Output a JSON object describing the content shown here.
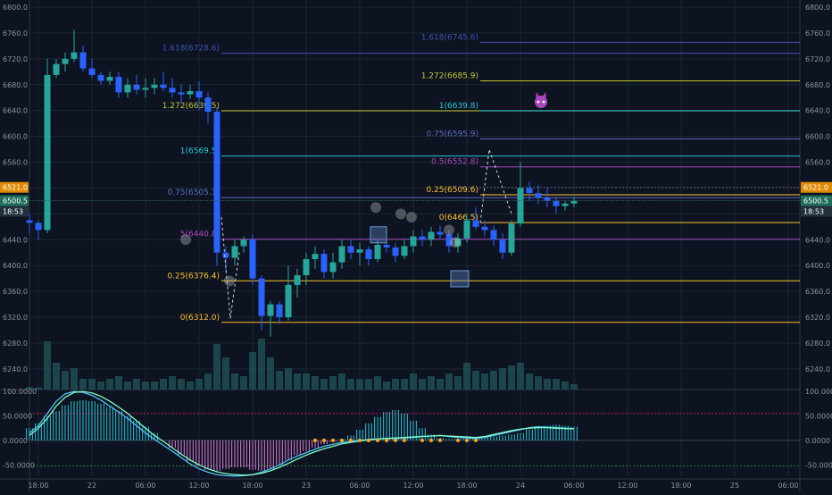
{
  "colors": {
    "background": "#0d1320",
    "grid": "#1b2433",
    "axis_text": "#8a93a3",
    "up": "#26a69a",
    "down": "#2962ff",
    "volume": "#1f4f52",
    "macd_line": "#4fc3f7",
    "signal_line": "#80ffc8",
    "hist_pos": "#26c6da",
    "hist_neg": "#e07bdc",
    "fib_1618": "#3f51b5",
    "fib_1272": "#c0ca33",
    "fib_1": "#26c6da",
    "fib_075": "#5c6bc0",
    "fib_05": "#ab47bc",
    "fib_025": "#fbc02d",
    "fib_0": "#fbc02d",
    "marker_orange": "#ffa726",
    "price_tag_orange": "#e08a00",
    "price_tag_green": "#1f6f5c",
    "price_tag_dark": "#23303d"
  },
  "chart_data": {
    "type": "candlestick",
    "price_axis": {
      "ylim": [
        6208,
        6800
      ],
      "ticks": [
        "6800.0",
        "6760.0",
        "6720.0",
        "6680.0",
        "6640.0",
        "6600.0",
        "6560.0",
        "6520.0",
        "6480.0",
        "6440.0",
        "6400.0",
        "6360.0",
        "6320.0",
        "6280.0",
        "6240.0"
      ],
      "tick_values": [
        6800,
        6760,
        6720,
        6680,
        6640,
        6600,
        6560,
        6520,
        6480,
        6440,
        6400,
        6360,
        6320,
        6280,
        6240
      ]
    },
    "price_tags": [
      {
        "label": "6521.0",
        "value": 6521,
        "style": "orange"
      },
      {
        "label": "6500.5",
        "value": 6500.5,
        "style": "green"
      },
      {
        "label": "18:53",
        "value": 6484,
        "style": "dark"
      }
    ],
    "macd_axis": {
      "ylim": [
        -75,
        102
      ],
      "ticks": [
        "100.0000",
        "50.0000",
        "0.0000",
        "-50.0000"
      ],
      "tick_values": [
        100,
        50,
        0,
        -50
      ],
      "levels": [
        {
          "value": 55,
          "color": "#c2185b"
        },
        {
          "value": -52,
          "color": "#2e7d32"
        }
      ]
    },
    "time_axis": {
      "labels": [
        "18:00",
        "22",
        "06:00",
        "12:00",
        "18:00",
        "23",
        "06:00",
        "12:00",
        "18:00",
        "24",
        "06:00",
        "12:00",
        "18:00",
        "25",
        "06:00"
      ],
      "hours": [
        -6,
        0,
        6,
        12,
        18,
        24,
        30,
        36,
        42,
        48,
        54,
        60,
        66,
        72,
        78
      ]
    },
    "candles_hourly": [
      [
        6470,
        6480,
        6450,
        6466
      ],
      [
        6466,
        6470,
        6440,
        6455
      ],
      [
        6455,
        6720,
        6450,
        6695
      ],
      [
        6695,
        6720,
        6690,
        6712
      ],
      [
        6712,
        6730,
        6700,
        6720
      ],
      [
        6720,
        6765,
        6715,
        6730
      ],
      [
        6730,
        6740,
        6700,
        6705
      ],
      [
        6705,
        6720,
        6690,
        6695
      ],
      [
        6695,
        6700,
        6680,
        6686
      ],
      [
        6686,
        6700,
        6680,
        6692
      ],
      [
        6692,
        6700,
        6660,
        6668
      ],
      [
        6668,
        6690,
        6660,
        6680
      ],
      [
        6680,
        6695,
        6665,
        6672
      ],
      [
        6672,
        6690,
        6660,
        6675
      ],
      [
        6675,
        6690,
        6665,
        6680
      ],
      [
        6680,
        6700,
        6670,
        6675
      ],
      [
        6675,
        6690,
        6660,
        6668
      ],
      [
        6668,
        6680,
        6650,
        6665
      ],
      [
        6665,
        6680,
        6658,
        6670
      ],
      [
        6670,
        6685,
        6640,
        6660
      ],
      [
        6660,
        6668,
        6620,
        6638
      ],
      [
        6638,
        6645,
        6400,
        6420
      ],
      [
        6420,
        6430,
        6390,
        6412
      ],
      [
        6412,
        6440,
        6400,
        6430
      ],
      [
        6430,
        6445,
        6420,
        6440
      ],
      [
        6440,
        6448,
        6370,
        6380
      ],
      [
        6380,
        6385,
        6300,
        6322
      ],
      [
        6322,
        6345,
        6290,
        6340
      ],
      [
        6340,
        6345,
        6310,
        6320
      ],
      [
        6320,
        6400,
        6315,
        6370
      ],
      [
        6370,
        6395,
        6350,
        6385
      ],
      [
        6385,
        6420,
        6370,
        6410
      ],
      [
        6410,
        6430,
        6395,
        6418
      ],
      [
        6418,
        6425,
        6380,
        6390
      ],
      [
        6390,
        6420,
        6380,
        6405
      ],
      [
        6405,
        6440,
        6395,
        6430
      ],
      [
        6430,
        6440,
        6410,
        6420
      ],
      [
        6420,
        6435,
        6400,
        6425
      ],
      [
        6425,
        6430,
        6400,
        6410
      ],
      [
        6410,
        6440,
        6405,
        6432
      ],
      [
        6432,
        6438,
        6420,
        6428
      ],
      [
        6428,
        6435,
        6405,
        6415
      ],
      [
        6415,
        6440,
        6410,
        6430
      ],
      [
        6430,
        6455,
        6420,
        6445
      ],
      [
        6445,
        6455,
        6430,
        6440
      ],
      [
        6440,
        6460,
        6430,
        6452
      ],
      [
        6452,
        6462,
        6440,
        6448
      ],
      [
        6448,
        6455,
        6420,
        6430
      ],
      [
        6430,
        6450,
        6420,
        6442
      ],
      [
        6442,
        6480,
        6435,
        6470
      ],
      [
        6470,
        6490,
        6455,
        6460
      ],
      [
        6460,
        6470,
        6445,
        6455
      ],
      [
        6455,
        6462,
        6430,
        6440
      ],
      [
        6440,
        6450,
        6410,
        6420
      ],
      [
        6420,
        6470,
        6415,
        6465
      ],
      [
        6465,
        6560,
        6460,
        6520
      ],
      [
        6520,
        6530,
        6500,
        6512
      ],
      [
        6512,
        6525,
        6495,
        6505
      ],
      [
        6505,
        6520,
        6490,
        6500
      ],
      [
        6500,
        6505,
        6480,
        6492
      ],
      [
        6492,
        6500,
        6485,
        6496
      ],
      [
        6496,
        6506,
        6490,
        6500
      ]
    ],
    "candles_hourly_start": -7,
    "volume_hourly": [
      0.05,
      0.04,
      0.9,
      0.5,
      0.35,
      0.4,
      0.2,
      0.2,
      0.15,
      0.2,
      0.25,
      0.15,
      0.2,
      0.15,
      0.15,
      0.2,
      0.25,
      0.2,
      0.15,
      0.2,
      0.3,
      0.85,
      0.6,
      0.3,
      0.25,
      0.7,
      0.95,
      0.6,
      0.35,
      0.4,
      0.3,
      0.3,
      0.25,
      0.2,
      0.25,
      0.3,
      0.2,
      0.2,
      0.2,
      0.25,
      0.15,
      0.2,
      0.2,
      0.3,
      0.2,
      0.25,
      0.2,
      0.3,
      0.25,
      0.5,
      0.35,
      0.3,
      0.35,
      0.4,
      0.45,
      0.5,
      0.3,
      0.25,
      0.2,
      0.2,
      0.15,
      0.1
    ],
    "macd_hist_hourly": [
      25,
      35,
      50,
      60,
      72,
      80,
      82,
      80,
      75,
      68,
      60,
      50,
      40,
      28,
      15,
      0,
      -15,
      -30,
      -42,
      -52,
      -60,
      -62,
      -58,
      -55,
      -55,
      -60,
      -62,
      -58,
      -50,
      -40,
      -30,
      -22,
      -15,
      -8,
      -3,
      2,
      10,
      22,
      35,
      48,
      58,
      62,
      55,
      40,
      25,
      12,
      5,
      3,
      3,
      4,
      5,
      6,
      8,
      10,
      12,
      15,
      22,
      28,
      30,
      32,
      30,
      28
    ],
    "macd_line_hourly": [
      15,
      30,
      55,
      80,
      95,
      100,
      98,
      92,
      82,
      70,
      58,
      45,
      30,
      15,
      2,
      -10,
      -22,
      -35,
      -48,
      -58,
      -65,
      -70,
      -72,
      -73,
      -72,
      -70,
      -65,
      -58,
      -50,
      -40,
      -32,
      -25,
      -18,
      -12,
      -8,
      -4,
      -2,
      0,
      2,
      3,
      4,
      4,
      5,
      6,
      8,
      9,
      10,
      8,
      6,
      5,
      4,
      6,
      10,
      14,
      18,
      22,
      26,
      28,
      27,
      26,
      25,
      24
    ],
    "signal_line_hourly": [
      10,
      25,
      45,
      70,
      88,
      98,
      100,
      97,
      90,
      80,
      68,
      55,
      40,
      25,
      10,
      -2,
      -15,
      -28,
      -40,
      -50,
      -58,
      -64,
      -68,
      -70,
      -71,
      -70,
      -67,
      -62,
      -55,
      -47,
      -38,
      -30,
      -23,
      -17,
      -12,
      -7,
      -4,
      -1,
      1,
      3,
      4,
      5,
      6,
      7,
      8,
      9,
      10,
      9,
      8,
      7,
      6,
      8,
      12,
      16,
      20,
      23,
      25,
      26,
      26,
      25,
      24,
      24
    ],
    "fib_left": {
      "x_start_hour": 14.5,
      "levels": [
        {
          "label": "1.618(6728.6)",
          "value": 6728.6,
          "color_key": "fib_1618"
        },
        {
          "label": "1.272(6639.5)",
          "value": 6639.5,
          "color_key": "fib_1272"
        },
        {
          "label": "1(6569.5)",
          "value": 6569.5,
          "color_key": "fib_1"
        },
        {
          "label": "0.75(6505.1)",
          "value": 6505.1,
          "color_key": "fib_075"
        },
        {
          "label": "5(6440.8)",
          "value": 6440.8,
          "color_key": "fib_05"
        },
        {
          "label": "0.25(6376.4)",
          "value": 6376.4,
          "color_key": "fib_025"
        },
        {
          "label": "0(6312.0)",
          "value": 6312.0,
          "color_key": "fib_0"
        }
      ]
    },
    "fib_right": {
      "x_start_hour": 43.5,
      "levels": [
        {
          "label": "1.618(6745.6)",
          "value": 6745.6,
          "color_key": "fib_1618"
        },
        {
          "label": "1.272(6685.9)",
          "value": 6685.9,
          "color_key": "fib_1272"
        },
        {
          "label": "1(6639.8)",
          "value": 6639.8,
          "color_key": "fib_1"
        },
        {
          "label": "0.75(6595.9)",
          "value": 6595.9,
          "color_key": "fib_075"
        },
        {
          "label": "0.5(6552.8)",
          "value": 6552.8,
          "color_key": "fib_05"
        },
        {
          "label": "0.25(6509.6)",
          "value": 6509.6,
          "color_key": "fib_025"
        },
        {
          "label": "0(6466.5)",
          "value": 6466.5,
          "color_key": "fib_0"
        }
      ]
    },
    "markers_hours": [
      25,
      26,
      27,
      28,
      29,
      30,
      31,
      32,
      33,
      34,
      35,
      37,
      38,
      39,
      41,
      42,
      43
    ]
  }
}
